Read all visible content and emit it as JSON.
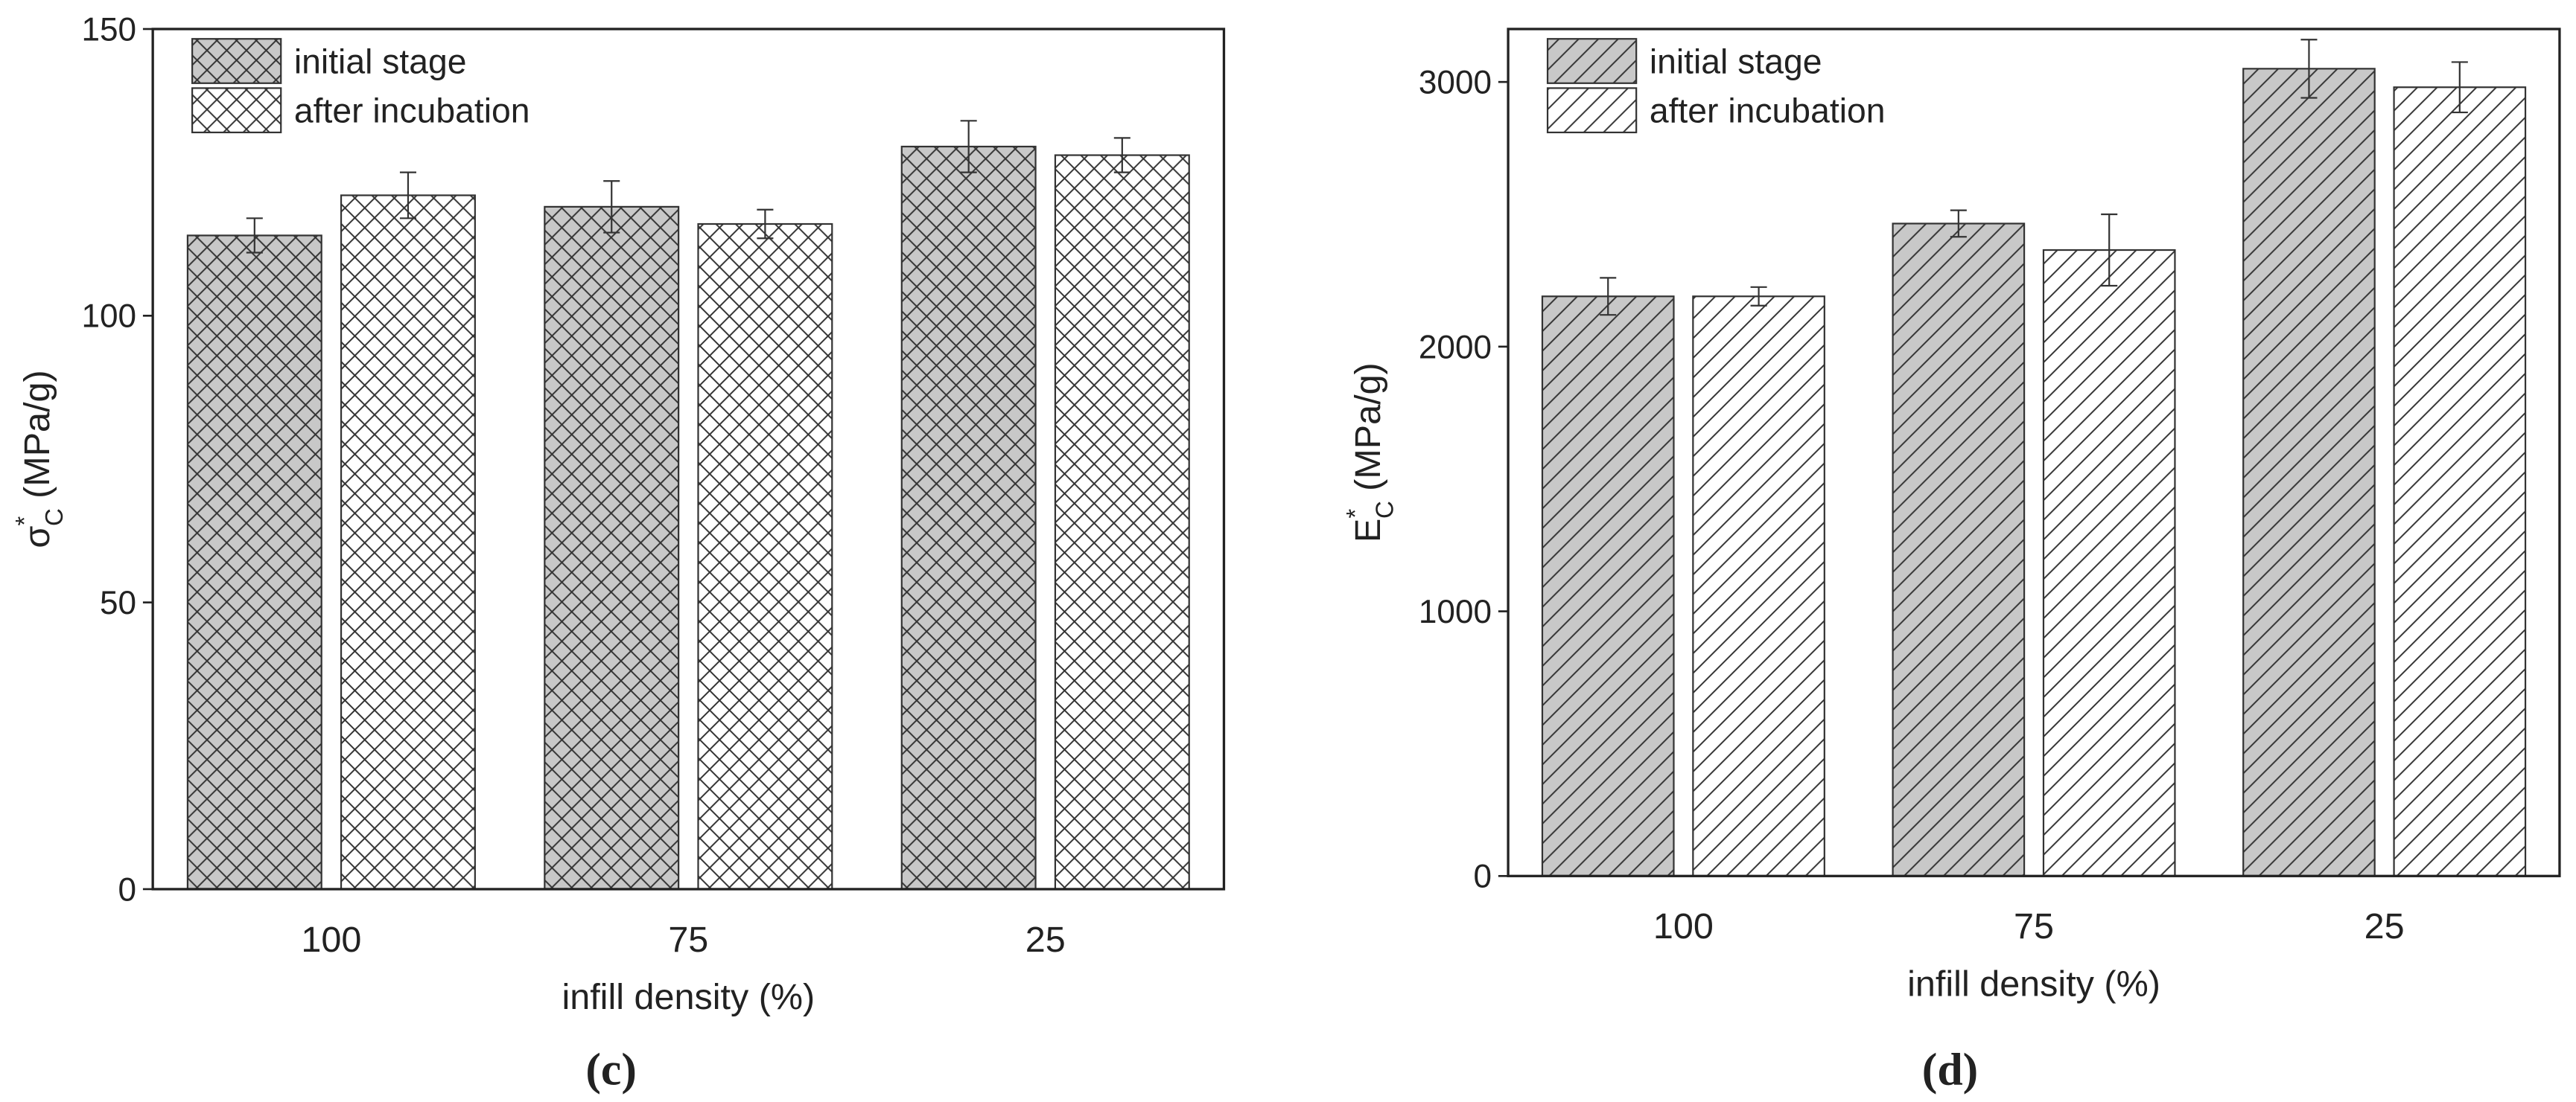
{
  "chart_data": [
    {
      "type": "bar",
      "panel_label": "(c)",
      "ylabel": {
        "symbol": "σ",
        "superscript": "*",
        "subscript": "C",
        "unit": "(MPa/g)"
      },
      "xlabel": "infill density (%)",
      "categories": [
        "100",
        "75",
        "25"
      ],
      "series": [
        {
          "name": "initial stage",
          "color": "#c8c8c8",
          "hatch": "crosshatch",
          "values": [
            114,
            119,
            129.5
          ],
          "errors": [
            3,
            4.5,
            4.5
          ]
        },
        {
          "name": "after incubation",
          "color": "#ffffff",
          "hatch": "crosshatch",
          "values": [
            121,
            116,
            128
          ],
          "errors": [
            4,
            2.5,
            3
          ]
        }
      ],
      "ylim": [
        0,
        150
      ],
      "yticks": [
        0,
        50,
        100,
        150
      ]
    },
    {
      "type": "bar",
      "panel_label": "(d)",
      "ylabel": {
        "symbol": "E",
        "superscript": "*",
        "subscript": "C",
        "unit": "(MPa/g)"
      },
      "xlabel": "infill density (%)",
      "categories": [
        "100",
        "75",
        "25"
      ],
      "series": [
        {
          "name": "initial stage",
          "color": "#c8c8c8",
          "hatch": "diagonal",
          "values": [
            2190,
            2465,
            3050
          ],
          "errors": [
            70,
            50,
            110
          ]
        },
        {
          "name": "after incubation",
          "color": "#ffffff",
          "hatch": "diagonal",
          "values": [
            2190,
            2365,
            2980
          ],
          "errors": [
            35,
            135,
            95
          ]
        }
      ],
      "ylim": [
        0,
        3200
      ],
      "yticks": [
        0,
        1000,
        2000,
        3000
      ]
    }
  ]
}
